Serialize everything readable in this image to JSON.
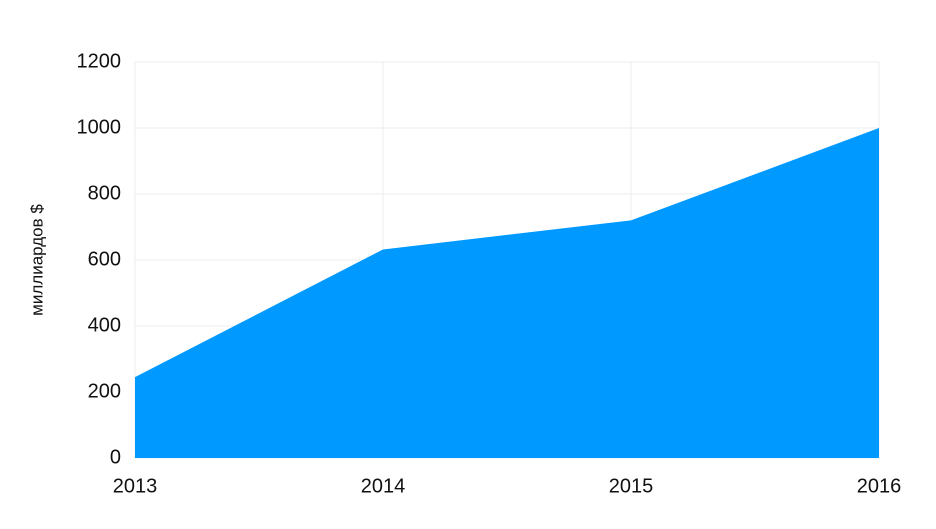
{
  "chart_data": {
    "type": "area",
    "y_label": "миллиардов $",
    "x": [
      2013,
      2014,
      2015,
      2016
    ],
    "series": [
      {
        "color": "#0099ff",
        "values": [
          245,
          632,
          720,
          1000
        ]
      }
    ],
    "xlim": [
      2013,
      2016
    ],
    "xticks": [
      2013,
      2014,
      2015,
      2016
    ],
    "ylim": [
      0,
      1200
    ],
    "yticks": [
      0,
      200,
      400,
      600,
      800,
      1000,
      1200
    ],
    "grid": true
  }
}
